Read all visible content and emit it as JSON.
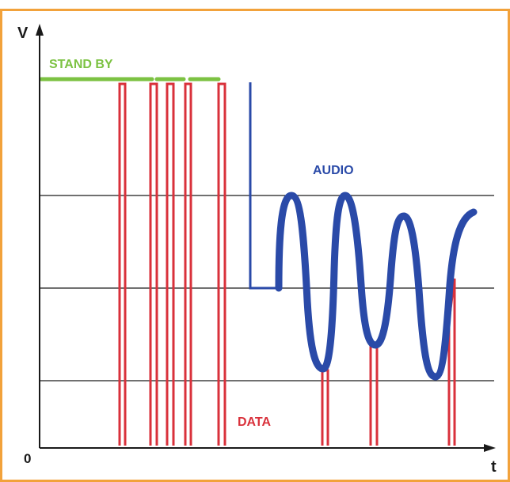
{
  "diagram": {
    "axis": {
      "y_label": "V",
      "x_label": "t",
      "origin_label": "0"
    },
    "labels": {
      "standby": "STAND BY",
      "audio": "AUDIO",
      "data": "DATA"
    },
    "colors": {
      "frame_border": "#f2a23b",
      "axis": "#1a1a1a",
      "gridline": "#1a1a1a",
      "standby": "#7cc242",
      "data": "#d9313b",
      "audio": "#2a4aa8"
    }
  }
}
